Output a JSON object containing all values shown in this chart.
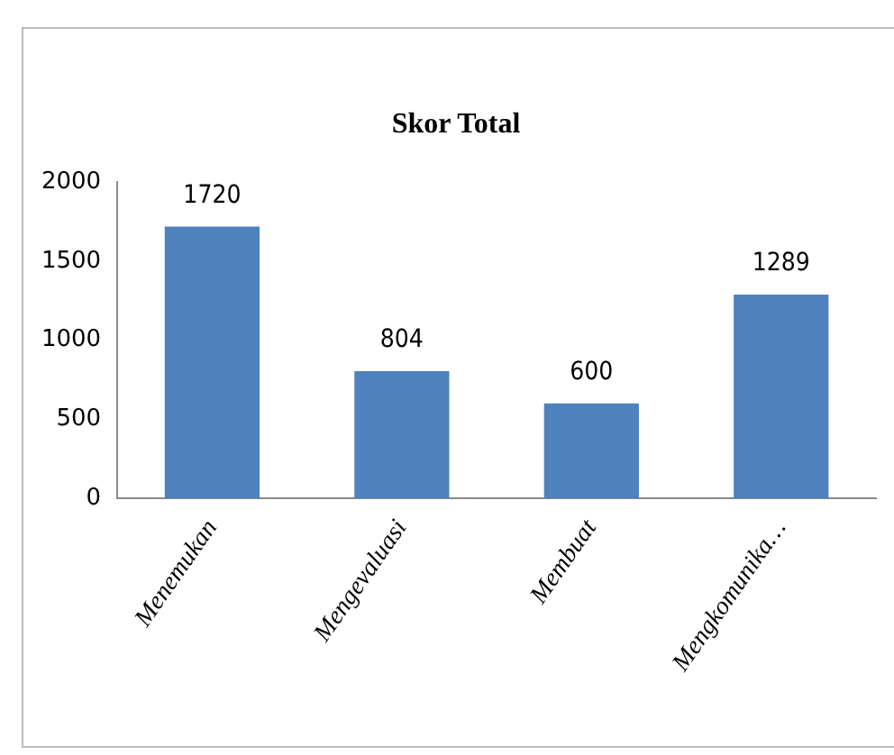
{
  "chart_data": {
    "type": "bar",
    "title": "Skor Total",
    "categories": [
      "Menemukan",
      "Mengevaluasi",
      "Membuat",
      "Mengkomunika…"
    ],
    "values": [
      1720,
      804,
      600,
      1289
    ],
    "color": "#4f81bd",
    "ylim": [
      0,
      2000
    ],
    "yticks": [
      0,
      500,
      1000,
      1500,
      2000
    ],
    "grid": false,
    "legend": false,
    "data_labels": true
  }
}
